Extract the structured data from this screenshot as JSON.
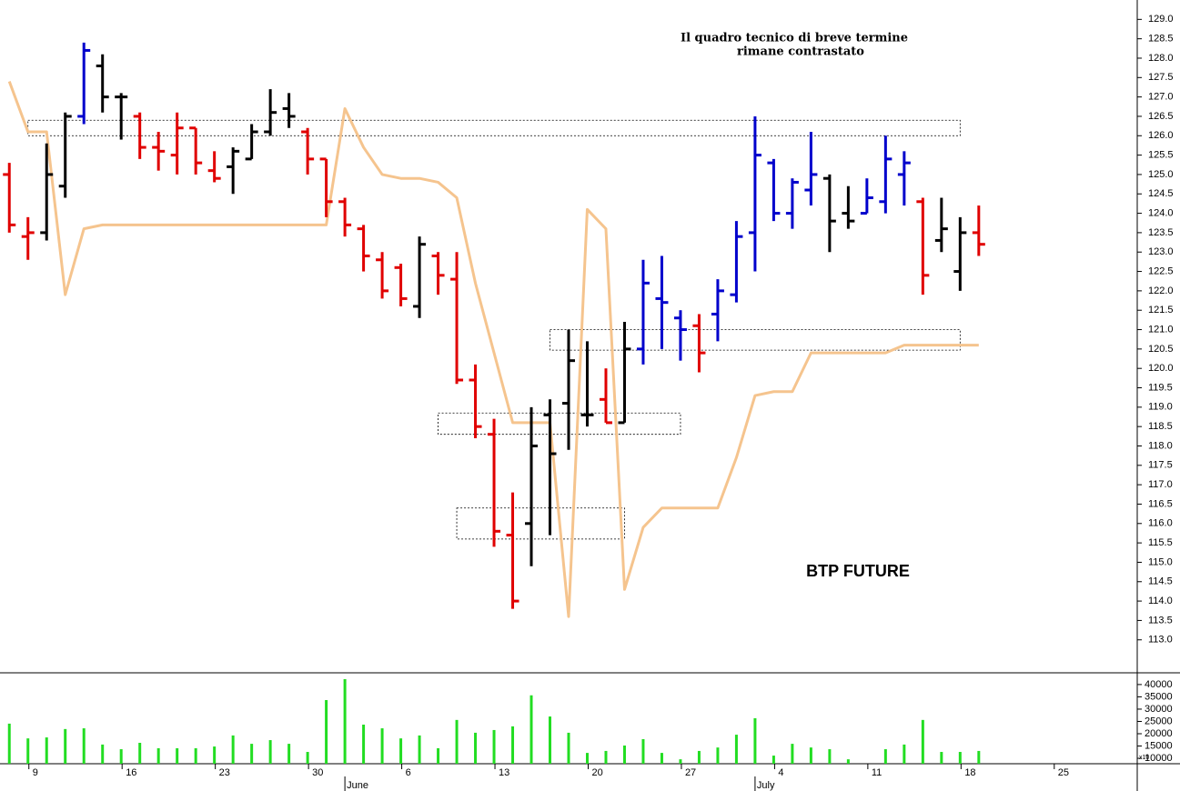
{
  "chart_data": {
    "type": "ohlc",
    "title": "BTP FUTURE",
    "note": [
      "Il quadro tecnico di breve termine",
      "rimane contrastato"
    ],
    "xlim": [
      -0.5,
      60.5
    ],
    "xticks": [
      {
        "value": 1,
        "label": "9"
      },
      {
        "value": 6,
        "label": "16"
      },
      {
        "value": 11,
        "label": "23"
      },
      {
        "value": 16,
        "label": "30"
      },
      {
        "value": 21,
        "label": "6"
      },
      {
        "value": 26,
        "label": "13"
      },
      {
        "value": 31,
        "label": "20"
      },
      {
        "value": 36,
        "label": "27"
      },
      {
        "value": 41,
        "label": "4"
      },
      {
        "value": 46,
        "label": "11"
      },
      {
        "value": 51,
        "label": "18"
      },
      {
        "value": 56,
        "label": "25"
      }
    ],
    "month_ticks": [
      {
        "value": 18,
        "label": "June"
      },
      {
        "value": 40,
        "label": "July"
      }
    ],
    "ylim": [
      112.15,
      129.5
    ],
    "yticks": [
      {
        "value": 113,
        "label": "113.0"
      },
      113.5,
      {
        "value": 114,
        "label": "114.0"
      },
      114.5,
      {
        "value": 115,
        "label": "115.0"
      },
      115.5,
      {
        "value": 116,
        "label": "116.0"
      },
      116.5,
      {
        "value": 117,
        "label": "117.0"
      },
      117.5,
      {
        "value": 118,
        "label": "118.0"
      },
      118.5,
      {
        "value": 119,
        "label": "119.0"
      },
      119.5,
      {
        "value": 120,
        "label": "120.0"
      },
      120.5,
      {
        "value": 121,
        "label": "121.0"
      },
      121.5,
      {
        "value": 122,
        "label": "122.0"
      },
      122.5,
      {
        "value": 123,
        "label": "123.0"
      },
      123.5,
      {
        "value": 124,
        "label": "124.0"
      },
      124.5,
      {
        "value": 125,
        "label": "125.0"
      },
      125.5,
      {
        "value": 126,
        "label": "126.0"
      },
      126.5,
      {
        "value": 127,
        "label": "127.0"
      },
      127.5,
      {
        "value": 128,
        "label": "128.0"
      },
      128.5,
      {
        "value": 129,
        "label": "129.0"
      }
    ],
    "open": [
      125.0,
      123.4,
      123.5,
      124.7,
      126.5,
      127.8,
      127.0,
      126.5,
      125.7,
      125.5,
      126.2,
      125.1,
      125.2,
      125.4,
      126.1,
      126.7,
      126.1,
      125.4,
      124.3,
      123.6,
      122.8,
      122.6,
      121.6,
      122.9,
      122.3,
      119.7,
      118.3,
      115.7,
      116.0,
      118.8,
      119.1,
      118.8,
      119.2,
      118.6,
      120.5,
      121.8,
      121.3,
      121.1,
      121.4,
      121.9,
      123.5,
      125.3,
      124.0,
      124.6,
      124.9,
      124.0,
      124.0,
      124.3,
      125.0,
      124.3,
      123.3,
      122.5,
      123.5
    ],
    "high": [
      125.3,
      123.9,
      125.8,
      126.6,
      128.4,
      128.1,
      127.1,
      126.6,
      126.1,
      126.6,
      126.2,
      125.6,
      125.7,
      126.3,
      127.2,
      127.1,
      126.2,
      125.4,
      124.4,
      123.7,
      123.0,
      122.7,
      123.4,
      123.0,
      123.0,
      120.1,
      118.7,
      116.8,
      119.0,
      119.2,
      121.0,
      120.7,
      120.0,
      121.2,
      122.8,
      122.9,
      121.5,
      121.4,
      122.3,
      123.8,
      126.5,
      125.4,
      124.9,
      126.1,
      125.0,
      124.7,
      124.9,
      126.0,
      125.6,
      124.4,
      124.4,
      123.9,
      124.2
    ],
    "low": [
      123.5,
      122.8,
      123.3,
      124.4,
      126.3,
      126.6,
      125.9,
      125.4,
      125.1,
      125.0,
      125.0,
      124.8,
      124.5,
      125.4,
      126.0,
      126.2,
      125.0,
      123.9,
      123.4,
      122.5,
      121.8,
      121.6,
      121.3,
      121.9,
      119.6,
      118.2,
      115.4,
      113.8,
      114.9,
      115.7,
      117.9,
      118.5,
      118.6,
      118.6,
      120.1,
      120.5,
      120.2,
      119.9,
      120.7,
      121.7,
      122.5,
      123.8,
      123.6,
      124.2,
      123.0,
      123.6,
      124.0,
      124.0,
      124.2,
      121.9,
      123.0,
      122.0,
      122.9
    ],
    "close": [
      123.7,
      123.5,
      125.0,
      126.5,
      128.2,
      127.0,
      127.0,
      125.7,
      125.6,
      126.2,
      125.3,
      124.9,
      125.6,
      126.1,
      126.6,
      126.5,
      125.4,
      124.3,
      123.7,
      122.9,
      122.0,
      121.8,
      123.2,
      122.4,
      119.7,
      118.5,
      115.8,
      114.0,
      118.0,
      117.8,
      120.2,
      118.8,
      118.6,
      120.5,
      122.2,
      121.7,
      121.0,
      120.4,
      122.0,
      123.4,
      125.5,
      124.0,
      124.8,
      125.0,
      123.8,
      123.8,
      124.4,
      125.4,
      125.3,
      122.4,
      123.6,
      123.5,
      123.2
    ],
    "colors": [
      "#e00000",
      "#e00000",
      "#000000",
      "#000000",
      "#0000cc",
      "#000000",
      "#000000",
      "#e00000",
      "#e00000",
      "#e00000",
      "#e00000",
      "#e00000",
      "#000000",
      "#000000",
      "#000000",
      "#000000",
      "#e00000",
      "#e00000",
      "#e00000",
      "#e00000",
      "#e00000",
      "#e00000",
      "#000000",
      "#e00000",
      "#e00000",
      "#e00000",
      "#e00000",
      "#e00000",
      "#000000",
      "#000000",
      "#000000",
      "#000000",
      "#e00000",
      "#000000",
      "#0000cc",
      "#0000cc",
      "#0000cc",
      "#e00000",
      "#0000cc",
      "#0000cc",
      "#0000cc",
      "#0000cc",
      "#0000cc",
      "#0000cc",
      "#000000",
      "#000000",
      "#0000cc",
      "#0000cc",
      "#0000cc",
      "#e00000",
      "#000000",
      "#000000",
      "#e00000"
    ],
    "stop_line": {
      "color": "#f5c48e",
      "values": [
        127.4,
        126.1,
        126.1,
        121.9,
        123.6,
        123.7,
        123.7,
        123.7,
        123.7,
        123.7,
        123.7,
        123.7,
        123.7,
        123.7,
        123.7,
        123.7,
        123.7,
        123.7,
        126.7,
        125.7,
        125.0,
        124.9,
        124.9,
        124.8,
        124.4,
        122.2,
        120.4,
        118.6,
        118.6,
        118.6,
        113.6,
        124.1,
        123.6,
        114.3,
        115.9,
        116.4,
        116.4,
        116.4,
        116.4,
        117.7,
        119.3,
        119.4,
        119.4,
        120.4,
        120.4,
        120.4,
        120.4,
        120.4,
        120.6,
        120.6,
        120.6,
        120.6,
        120.6
      ]
    },
    "zones": [
      {
        "x": [
          1,
          51
        ],
        "y": [
          126.0,
          126.4
        ]
      },
      {
        "x": [
          29,
          51
        ],
        "y": [
          120.47,
          121.0
        ]
      },
      {
        "x": [
          23,
          36
        ],
        "y": [
          118.3,
          118.85
        ]
      },
      {
        "x": [
          24,
          33
        ],
        "y": [
          115.6,
          116.4
        ]
      }
    ],
    "volume": {
      "color": "#22dd22",
      "multiplier_label": "x10",
      "ylim": [
        7800,
        44400
      ],
      "yticks": [
        10000,
        15000,
        20000,
        25000,
        30000,
        35000,
        40000
      ],
      "values": [
        24100,
        18100,
        18500,
        21900,
        22200,
        15600,
        13700,
        16300,
        14100,
        14100,
        14100,
        14800,
        19300,
        15900,
        17400,
        15900,
        12600,
        33700,
        42200,
        23700,
        22200,
        18100,
        19300,
        14100,
        25600,
        20400,
        21500,
        23000,
        35600,
        27000,
        20400,
        12200,
        13000,
        15200,
        17800,
        12200,
        9600,
        13000,
        14400,
        19600,
        26300,
        11100,
        15900,
        14400,
        13700,
        9600,
        null,
        13700,
        15600,
        25600,
        12600,
        12600,
        13000
      ]
    }
  }
}
